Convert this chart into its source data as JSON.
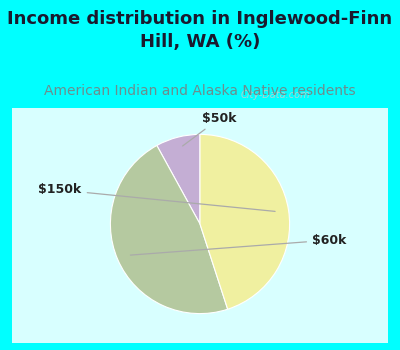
{
  "title": "Income distribution in Inglewood-Finn\nHill, WA (%)",
  "subtitle": "American Indian and Alaska Native residents",
  "title_color": "#1a1a2e",
  "subtitle_color": "#6b8e8e",
  "top_bg_color": "#00ffff",
  "watermark": "City-Data.com",
  "slices": [
    {
      "label": "$50k",
      "value": 8,
      "color": "#c4aed4"
    },
    {
      "label": "$60k",
      "value": 47,
      "color": "#b5c9a0"
    },
    {
      "label": "$150k",
      "value": 45,
      "color": "#f0f0a0"
    }
  ],
  "startangle": 90,
  "label_fontsize": 9,
  "title_fontsize": 13,
  "subtitle_fontsize": 10
}
